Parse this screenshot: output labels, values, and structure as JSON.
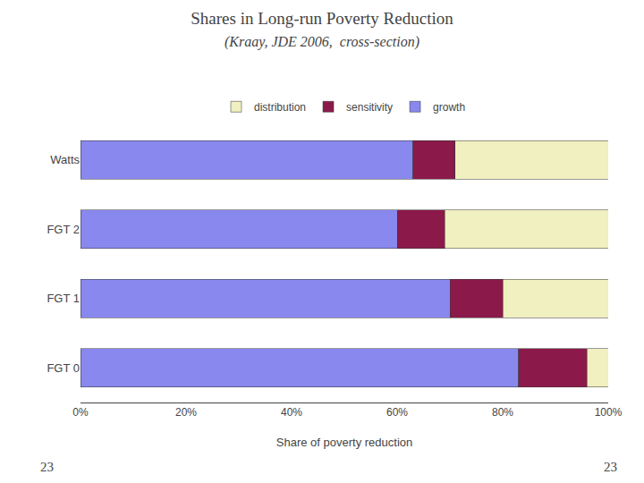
{
  "chart_data": {
    "type": "bar",
    "orientation": "horizontal",
    "stacked": true,
    "title": "Shares in Long-run Poverty Reduction",
    "subtitle": "(Kraay, JDE 2006,  cross-section)",
    "x_label": "Share of poverty reduction",
    "categories": [
      "Watts",
      "FGT 2",
      "FGT 1",
      "FGT 0"
    ],
    "series": [
      {
        "name": "growth",
        "color": "#8888ee",
        "values": [
          0.63,
          0.6,
          0.7,
          0.83
        ]
      },
      {
        "name": "sensitivity",
        "color": "#8b1a4a",
        "values": [
          0.08,
          0.09,
          0.1,
          0.13
        ]
      },
      {
        "name": "distribution",
        "color": "#f0f0c0",
        "values": [
          0.29,
          0.31,
          0.2,
          0.04
        ]
      }
    ],
    "xlim": [
      0.0,
      1.0
    ],
    "xticks": [
      {
        "value": 0.0,
        "label": "0%"
      },
      {
        "value": 0.2,
        "label": "20%"
      },
      {
        "value": 0.4,
        "label": "40%"
      },
      {
        "value": 0.6,
        "label": "60%"
      },
      {
        "value": 0.8,
        "label": "80%"
      },
      {
        "value": 1.0,
        "label": "100%"
      }
    ],
    "grid": false,
    "legend": "upper center",
    "annotations": [
      {
        "text": "23"
      },
      {
        "text": "23"
      }
    ]
  }
}
